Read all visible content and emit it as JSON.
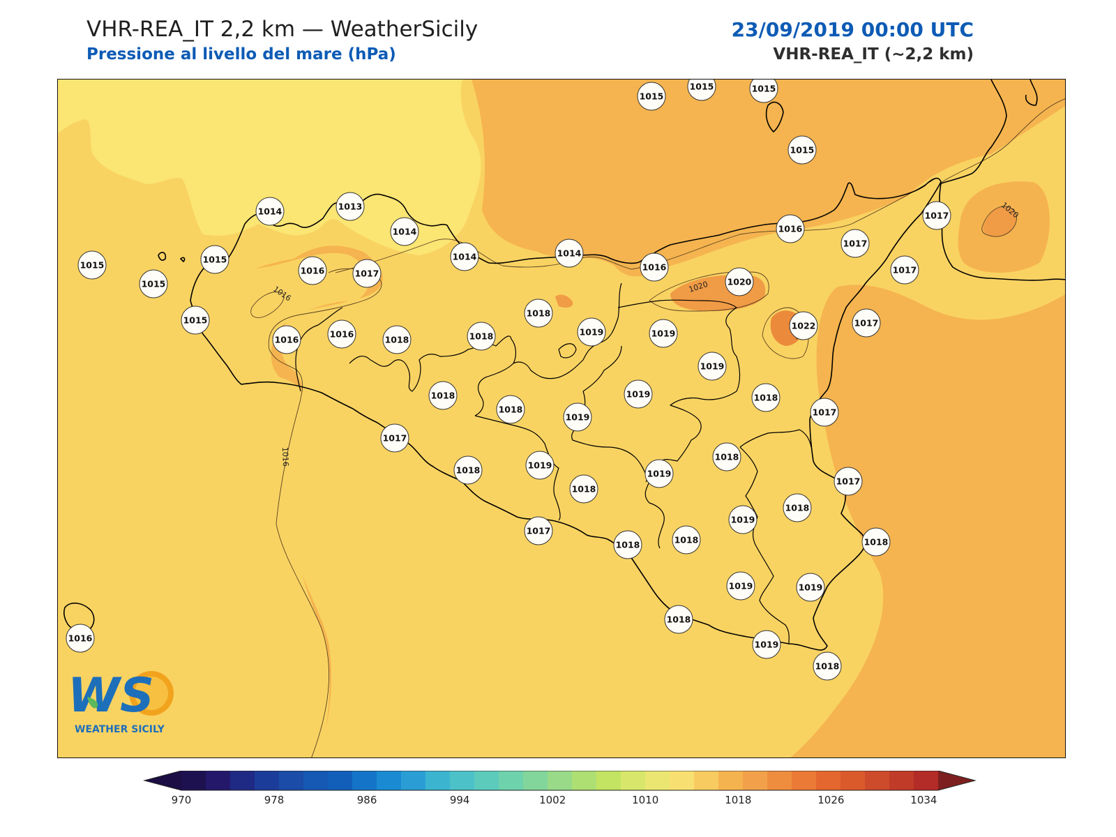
{
  "header": {
    "title": "VHR-REA_IT 2,2 km — WeatherSicily",
    "subtitle": "Pressione al livello del mare (hPa)",
    "datetime": "23/09/2019 00:00 UTC",
    "model": "VHR-REA_IT (~2,2 km)"
  },
  "logo": {
    "text": "WEATHER SICILY",
    "mark": "WS"
  },
  "contour_labels": [
    "1016",
    "1016",
    "1020",
    "1020",
    "1020"
  ],
  "stations": [
    {
      "value": "1015"
    },
    {
      "value": "1015"
    },
    {
      "value": "1015"
    },
    {
      "value": "1015"
    },
    {
      "value": "1014"
    },
    {
      "value": "1013"
    },
    {
      "value": "1014"
    },
    {
      "value": "1015"
    },
    {
      "value": "1015"
    },
    {
      "value": "1015"
    },
    {
      "value": "1015"
    },
    {
      "value": "1017"
    },
    {
      "value": "1014"
    },
    {
      "value": "1014"
    },
    {
      "value": "1016"
    },
    {
      "value": "1016"
    },
    {
      "value": "1017"
    },
    {
      "value": "1017"
    },
    {
      "value": "1017"
    },
    {
      "value": "1020"
    },
    {
      "value": "1016"
    },
    {
      "value": "1016"
    },
    {
      "value": "1018"
    },
    {
      "value": "1018"
    },
    {
      "value": "1018"
    },
    {
      "value": "1019"
    },
    {
      "value": "1019"
    },
    {
      "value": "1022"
    },
    {
      "value": "1017"
    },
    {
      "value": "1016"
    },
    {
      "value": "1019"
    },
    {
      "value": "1019"
    },
    {
      "value": "1018"
    },
    {
      "value": "1017"
    },
    {
      "value": "1018"
    },
    {
      "value": "1018"
    },
    {
      "value": "1019"
    },
    {
      "value": "1017"
    },
    {
      "value": "1018"
    },
    {
      "value": "1019"
    },
    {
      "value": "1017"
    },
    {
      "value": "1018"
    },
    {
      "value": "1019"
    },
    {
      "value": "1019"
    },
    {
      "value": "1018"
    },
    {
      "value": "1018"
    },
    {
      "value": "1018"
    },
    {
      "value": "1019"
    },
    {
      "value": "1017"
    },
    {
      "value": "1018"
    },
    {
      "value": "1018"
    },
    {
      "value": "1019"
    },
    {
      "value": "1019"
    },
    {
      "value": "1018"
    },
    {
      "value": "1016"
    },
    {
      "value": "1018"
    }
  ],
  "colorbar": {
    "ticks": [
      "970",
      "978",
      "986",
      "994",
      "1002",
      "1010",
      "1018",
      "1026",
      "1034"
    ],
    "colors": [
      "#1e1150",
      "#23186a",
      "#1f2a84",
      "#1c3c99",
      "#1a4ca8",
      "#1659b4",
      "#125fba",
      "#1475c8",
      "#1a8bd3",
      "#2a9ed4",
      "#3bb4d0",
      "#4dc1c8",
      "#5ccbbc",
      "#6ed2ad",
      "#83d69b",
      "#98da88",
      "#aedf73",
      "#c3e363",
      "#d8e76b",
      "#ebe672",
      "#f7e071",
      "#f7cb60",
      "#f5b34f",
      "#f2a14a",
      "#ee8d3e",
      "#ea7a35",
      "#e4672f",
      "#da5a2c",
      "#cd4b2a",
      "#c03b28",
      "#b42c27"
    ],
    "low_color": "#1c0d45",
    "high_color": "#7e1f1f"
  }
}
